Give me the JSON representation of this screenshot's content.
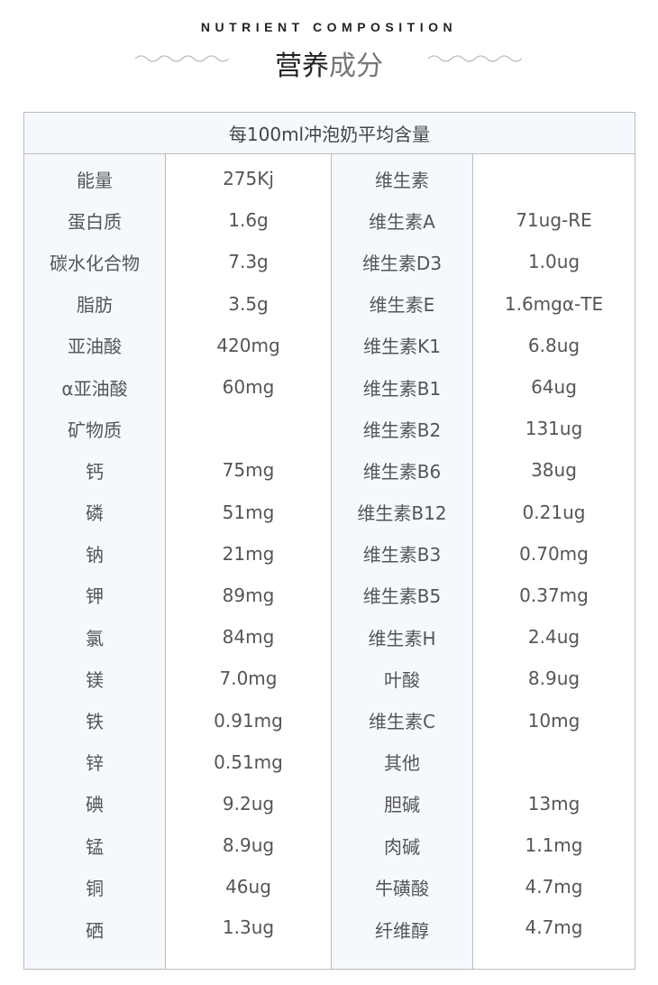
{
  "header": {
    "english_title": "NUTRIENT COMPOSITION",
    "chinese_title_dark": "营养",
    "chinese_title_light": "成分"
  },
  "table": {
    "caption": "每100ml冲泡奶平均含量",
    "rows": [
      [
        "能量",
        "275Kj",
        "维生素",
        ""
      ],
      [
        "蛋白质",
        "1.6g",
        "维生素A",
        "71ug-RE"
      ],
      [
        "碳水化合物",
        "7.3g",
        "维生素D3",
        "1.0ug"
      ],
      [
        "脂肪",
        "3.5g",
        "维生素E",
        "1.6mgα-TE"
      ],
      [
        "亚油酸",
        "420mg",
        "维生素K1",
        "6.8ug"
      ],
      [
        "α亚油酸",
        "60mg",
        "维生素B1",
        "64ug"
      ],
      [
        "矿物质",
        "",
        "维生素B2",
        "131ug"
      ],
      [
        "钙",
        "75mg",
        "维生素B6",
        "38ug"
      ],
      [
        "磷",
        "51mg",
        "维生素B12",
        "0.21ug"
      ],
      [
        "钠",
        "21mg",
        "维生素B3",
        "0.70mg"
      ],
      [
        "钾",
        "89mg",
        "维生素B5",
        "0.37mg"
      ],
      [
        "氯",
        "84mg",
        "维生素H",
        "2.4ug"
      ],
      [
        "镁",
        "7.0mg",
        "叶酸",
        "8.9ug"
      ],
      [
        "铁",
        "0.91mg",
        "维生素C",
        "10mg"
      ],
      [
        "锌",
        "0.51mg",
        "其他",
        ""
      ],
      [
        "碘",
        "9.2ug",
        "胆碱",
        "13mg"
      ],
      [
        "锰",
        "8.9ug",
        "肉碱",
        "1.1mg"
      ],
      [
        "铜",
        "46ug",
        "牛磺酸",
        "4.7mg"
      ],
      [
        "硒",
        "1.3ug",
        "纤维醇",
        "4.7mg"
      ]
    ]
  }
}
